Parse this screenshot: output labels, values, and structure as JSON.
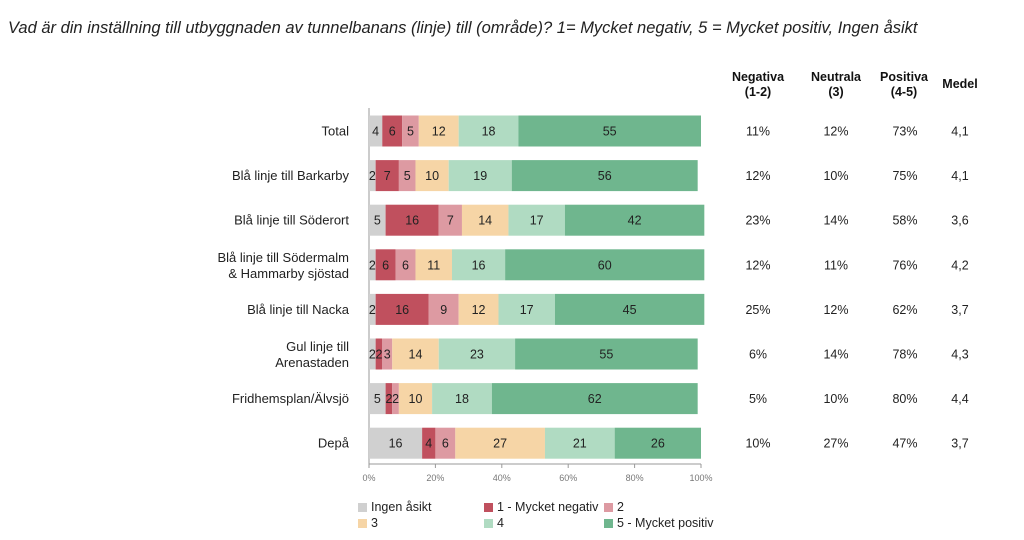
{
  "title": "Vad är din inställning till utbyggnaden av tunnelbanans (linje) till (område)? 1= Mycket negativ, 5 = Mycket positiv, Ingen åsikt",
  "headers": {
    "neg": [
      "Negativa",
      "(1-2)"
    ],
    "neu": [
      "Neutrala",
      "(3)"
    ],
    "pos": [
      "Positiva",
      "(4-5)"
    ],
    "mean": "Medel"
  },
  "chart_data": {
    "type": "bar",
    "stacked": true,
    "orientation": "horizontal",
    "xlim": [
      0,
      100
    ],
    "x_ticks": [
      "0%",
      "20%",
      "40%",
      "60%",
      "80%",
      "100%"
    ],
    "categories": [
      [
        "Total"
      ],
      [
        "Blå linje till Barkarby"
      ],
      [
        "Blå linje till Söderort"
      ],
      [
        "Blå linje till Södermalm",
        "& Hammarby sjöstad"
      ],
      [
        "Blå linje till Nacka"
      ],
      [
        "Gul linje till",
        "Arenastaden"
      ],
      [
        "Fridhemsplan/Älvsjö"
      ],
      [
        "Depå"
      ]
    ],
    "series": [
      {
        "name": "Ingen åsikt",
        "color": "#d0d0d0",
        "values": [
          4,
          2,
          5,
          2,
          2,
          2,
          5,
          16
        ]
      },
      {
        "name": "1 - Mycket negativ",
        "color": "#c0505e",
        "values": [
          6,
          7,
          16,
          6,
          16,
          2,
          2,
          4
        ]
      },
      {
        "name": "2",
        "color": "#dd9aa2",
        "values": [
          5,
          5,
          7,
          6,
          9,
          3,
          2,
          6
        ]
      },
      {
        "name": "3",
        "color": "#f6d5a6",
        "values": [
          12,
          10,
          14,
          11,
          12,
          14,
          10,
          27
        ]
      },
      {
        "name": "4",
        "color": "#b0dbc2",
        "values": [
          18,
          19,
          17,
          16,
          17,
          23,
          18,
          21
        ]
      },
      {
        "name": "5 - Mycket positiv",
        "color": "#6fb68e",
        "values": [
          55,
          56,
          42,
          60,
          45,
          55,
          62,
          26
        ]
      }
    ],
    "summary": {
      "negativa": [
        "11%",
        "12%",
        "23%",
        "12%",
        "25%",
        "6%",
        "5%",
        "10%"
      ],
      "neutrala": [
        "12%",
        "10%",
        "14%",
        "11%",
        "12%",
        "14%",
        "10%",
        "27%"
      ],
      "positiva": [
        "73%",
        "75%",
        "58%",
        "76%",
        "62%",
        "78%",
        "80%",
        "47%"
      ],
      "medel": [
        "4,1",
        "4,1",
        "3,6",
        "4,2",
        "3,7",
        "4,3",
        "4,4",
        "3,7"
      ]
    }
  }
}
